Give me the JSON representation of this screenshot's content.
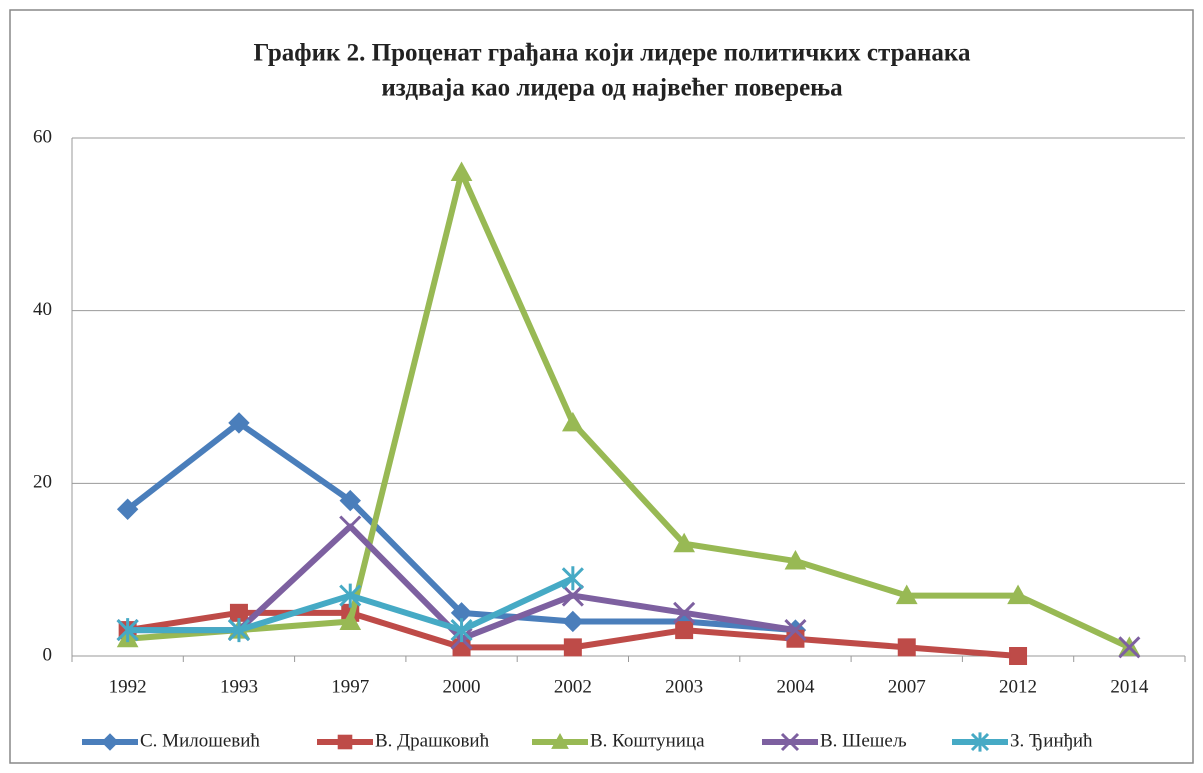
{
  "chart_data": {
    "type": "line",
    "title": [
      "График 2. Проценат грађана који лидере политичких странака",
      "издваја као лидера од највећег поверења"
    ],
    "categories": [
      "1992",
      "1993",
      "1997",
      "2000",
      "2002",
      "2003",
      "2004",
      "2007",
      "2012",
      "2014"
    ],
    "series": [
      {
        "name": "С. Милошевић",
        "color": "#4a7ebb",
        "marker": "diamond",
        "values": [
          17,
          27,
          18,
          5,
          4,
          4,
          3,
          null,
          null,
          null
        ]
      },
      {
        "name": "В. Драшковић",
        "color": "#be4b48",
        "marker": "square",
        "values": [
          3,
          5,
          5,
          1,
          1,
          3,
          2,
          1,
          0,
          null
        ]
      },
      {
        "name": "В. Коштуница",
        "color": "#98b954",
        "marker": "triangle",
        "values": [
          2,
          3,
          4,
          56,
          27,
          13,
          11,
          7,
          7,
          1
        ]
      },
      {
        "name": "В. Шешељ",
        "color": "#7d60a0",
        "marker": "x",
        "values": [
          3,
          3,
          15,
          2,
          7,
          5,
          3,
          null,
          null,
          1
        ]
      },
      {
        "name": "З. Ђинђић",
        "color": "#46aac5",
        "marker": "star",
        "values": [
          3,
          3,
          7,
          3,
          9,
          null,
          null,
          null,
          null,
          null
        ]
      }
    ],
    "ylim": [
      0,
      60
    ],
    "yticks": [
      0,
      20,
      40,
      60
    ],
    "grid": true,
    "legend": "bottom"
  }
}
